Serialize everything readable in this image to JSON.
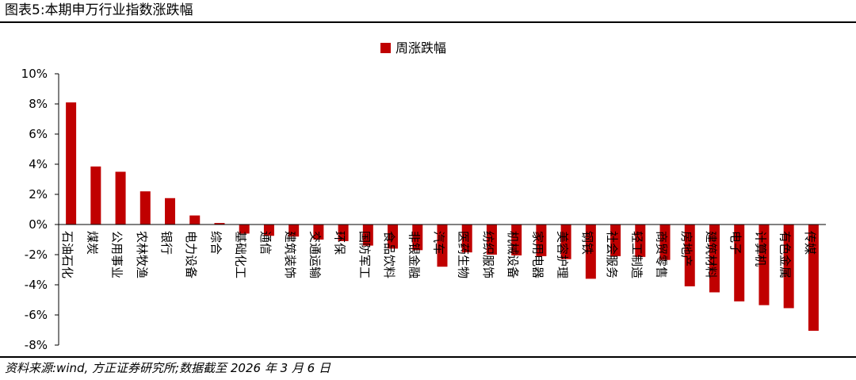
{
  "figure": {
    "title": "图表5:本期申万行业指数涨跌幅",
    "source": "资料来源:wind, 方正证券研究所;数据截至 2026 年 3 月 6 日"
  },
  "colors": {
    "bar": "#c00000",
    "axis": "#000000"
  },
  "chart_data": {
    "type": "bar",
    "title": "",
    "xlabel": "",
    "ylabel": "",
    "ylim": [
      -8,
      10
    ],
    "yticks": [
      -8,
      -6,
      -4,
      -2,
      0,
      2,
      4,
      6,
      8,
      10
    ],
    "ytick_format": "percent",
    "grid": false,
    "legend": "top-center",
    "categories": [
      "石油石化",
      "煤炭",
      "公用事业",
      "农林牧渔",
      "银行",
      "电力设备",
      "综合",
      "基础化工",
      "通信",
      "建筑装饰",
      "交通运输",
      "环保",
      "国防军工",
      "食品饮料",
      "非银金融",
      "汽车",
      "医药生物",
      "纺织服饰",
      "机械设备",
      "家用电器",
      "美容护理",
      "钢铁",
      "社会服务",
      "轻工制造",
      "商贸零售",
      "房地产",
      "建筑材料",
      "电子",
      "计算机",
      "有色金属",
      "传媒"
    ],
    "series": [
      {
        "name": "周涨跌幅",
        "values": [
          8.1,
          3.85,
          3.5,
          2.2,
          1.75,
          0.6,
          0.1,
          -0.6,
          -0.75,
          -0.8,
          -1.0,
          -1.1,
          -1.4,
          -1.6,
          -1.7,
          -2.8,
          -1.85,
          -2.0,
          -2.05,
          -2.1,
          -2.3,
          -3.6,
          -2.1,
          -2.15,
          -2.35,
          -4.1,
          -4.5,
          -5.1,
          -5.35,
          -5.55,
          -7.05
        ]
      }
    ]
  }
}
